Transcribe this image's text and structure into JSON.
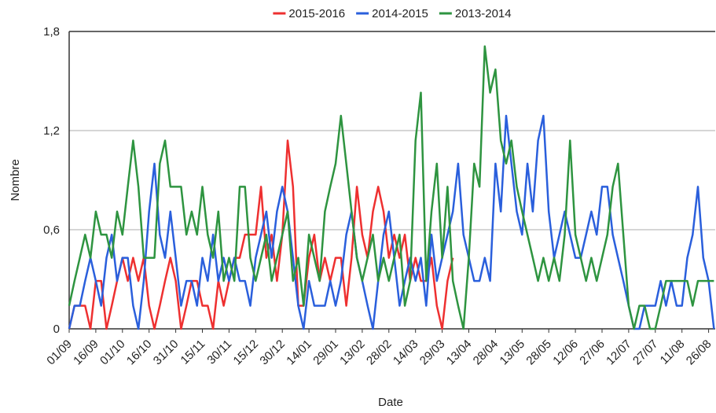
{
  "chart_data": {
    "type": "line",
    "x_label": "Date",
    "y_label": "Nombre",
    "categories": [
      "01/09",
      null,
      null,
      null,
      null,
      "16/09",
      null,
      null,
      null,
      null,
      "01/10",
      null,
      null,
      null,
      null,
      "16/10",
      null,
      null,
      null,
      null,
      "31/10",
      null,
      null,
      null,
      null,
      "15/11",
      null,
      null,
      null,
      null,
      "30/11",
      null,
      null,
      null,
      null,
      "15/12",
      null,
      null,
      null,
      null,
      "30/12",
      null,
      null,
      null,
      null,
      "14/01",
      null,
      null,
      null,
      null,
      "29/01",
      null,
      null,
      null,
      null,
      "13/02",
      null,
      null,
      null,
      null,
      "28/02",
      null,
      null,
      null,
      null,
      "14/03",
      null,
      null,
      null,
      null,
      "29/03",
      null,
      null,
      null,
      null,
      "13/04",
      null,
      null,
      null,
      null,
      "28/04",
      null,
      null,
      null,
      null,
      "13/05",
      null,
      null,
      null,
      null,
      "28/05",
      null,
      null,
      null,
      null,
      "12/06",
      null,
      null,
      null,
      null,
      "27/06",
      null,
      null,
      null,
      null,
      "12/07",
      null,
      null,
      null,
      null,
      "27/07",
      null,
      null,
      null,
      null,
      "11/08",
      null,
      null,
      null,
      null,
      "26/08",
      null
    ],
    "series": [
      {
        "name": "2015-2016",
        "color": "#ee3030",
        "values": [
          0,
          0.14,
          0.14,
          0.14,
          0,
          0.29,
          0.29,
          0,
          0.14,
          0.29,
          0.43,
          0.29,
          0.43,
          0.29,
          0.43,
          0.14,
          0,
          0.14,
          0.29,
          0.43,
          0.29,
          0,
          0.14,
          0.29,
          0.29,
          0.14,
          0.14,
          0,
          0.29,
          0.14,
          0.29,
          0.43,
          0.43,
          0.57,
          0.57,
          0.57,
          0.86,
          0.43,
          0.57,
          0.29,
          0.57,
          1.14,
          0.86,
          0.14,
          0.14,
          0.43,
          0.57,
          0.29,
          0.43,
          0.29,
          0.43,
          0.43,
          0.14,
          0.43,
          0.86,
          0.57,
          0.43,
          0.71,
          0.86,
          0.71,
          0.43,
          0.57,
          0.43,
          0.57,
          0.29,
          0.43,
          0.29,
          0.29,
          0.43,
          0.14,
          0,
          0.29,
          0.43,
          null,
          null,
          null,
          null,
          null,
          null,
          null,
          null,
          null,
          null,
          null,
          null,
          null,
          null,
          null,
          null,
          null,
          null,
          null,
          null,
          null,
          null,
          null,
          null,
          null,
          null,
          null,
          null,
          null,
          null,
          null,
          null,
          null,
          null,
          null,
          null,
          null,
          null,
          null,
          null,
          null,
          null,
          null,
          null,
          null,
          null,
          null,
          null,
          null
        ]
      },
      {
        "name": "2014-2015",
        "color": "#2a5fdc",
        "values": [
          0,
          0.14,
          0.14,
          0.29,
          0.43,
          0.29,
          0.14,
          0.43,
          0.57,
          0.29,
          0.43,
          0.43,
          0.14,
          0,
          0.29,
          0.71,
          1,
          0.57,
          0.43,
          0.71,
          0.43,
          0.14,
          0.29,
          0.29,
          0.14,
          0.43,
          0.29,
          0.57,
          0.29,
          0.43,
          0.29,
          0.43,
          0.29,
          0.29,
          0.14,
          0.43,
          0.57,
          0.71,
          0.43,
          0.71,
          0.86,
          0.71,
          0.43,
          0.14,
          0,
          0.29,
          0.14,
          0.14,
          0.14,
          0.29,
          0.14,
          0.29,
          0.57,
          0.71,
          0.43,
          0.29,
          0.14,
          0,
          0.29,
          0.57,
          0.71,
          0.43,
          0.14,
          0.29,
          0.43,
          0.29,
          0.43,
          0.14,
          0.57,
          0.29,
          0.43,
          0.57,
          0.71,
          1,
          0.57,
          0.43,
          0.29,
          0.29,
          0.43,
          0.29,
          1,
          0.71,
          1.29,
          1,
          0.71,
          0.57,
          1,
          0.71,
          1.14,
          1.29,
          0.71,
          0.43,
          0.57,
          0.71,
          0.57,
          0.43,
          0.43,
          0.57,
          0.71,
          0.57,
          0.86,
          0.86,
          0.57,
          0.43,
          0.29,
          0.14,
          0,
          0,
          0.14,
          0.14,
          0.14,
          0.29,
          0.14,
          0.29,
          0.14,
          0.14,
          0.43,
          0.57,
          0.86,
          0.43,
          0.29,
          0
        ]
      },
      {
        "name": "2013-2014",
        "color": "#2e9440",
        "values": [
          0.14,
          0.29,
          0.43,
          0.57,
          0.43,
          0.71,
          0.57,
          0.57,
          0.43,
          0.71,
          0.57,
          0.86,
          1.14,
          0.86,
          0.43,
          0.43,
          0.43,
          1,
          1.14,
          0.86,
          0.86,
          0.86,
          0.57,
          0.71,
          0.57,
          0.86,
          0.57,
          0.43,
          0.71,
          0.29,
          0.43,
          0.29,
          0.86,
          0.86,
          0.43,
          0.29,
          0.43,
          0.57,
          0.29,
          0.43,
          0.57,
          0.71,
          0.29,
          0.43,
          0.14,
          0.57,
          0.43,
          0.29,
          0.71,
          0.86,
          1,
          1.29,
          1,
          0.71,
          0.43,
          0.29,
          0.43,
          0.57,
          0.29,
          0.43,
          0.29,
          0.43,
          0.57,
          0.14,
          0.29,
          1.14,
          1.43,
          0.29,
          0.71,
          1,
          0.43,
          0.86,
          0.29,
          0.14,
          0,
          0.43,
          1,
          0.86,
          1.71,
          1.43,
          1.57,
          1.14,
          1,
          1.14,
          0.86,
          0.71,
          0.57,
          0.43,
          0.29,
          0.43,
          0.29,
          0.43,
          0.29,
          0.57,
          1.14,
          0.57,
          0.43,
          0.29,
          0.43,
          0.29,
          0.43,
          0.57,
          0.86,
          1,
          0.57,
          0.14,
          0,
          0.14,
          0.14,
          0,
          0,
          0.14,
          0.29,
          0.29,
          0.29,
          0.29,
          0.29,
          0.14,
          0.29,
          0.29,
          0.29,
          0.29
        ]
      }
    ],
    "ylim": [
      0,
      1.8
    ],
    "yticks": [
      0,
      {
        "value": 0.6,
        "label": "0,6"
      },
      {
        "value": 1.2,
        "label": "1,2"
      },
      {
        "value": 1.8,
        "label": "1,8"
      }
    ],
    "grid": true,
    "legend": "top"
  }
}
